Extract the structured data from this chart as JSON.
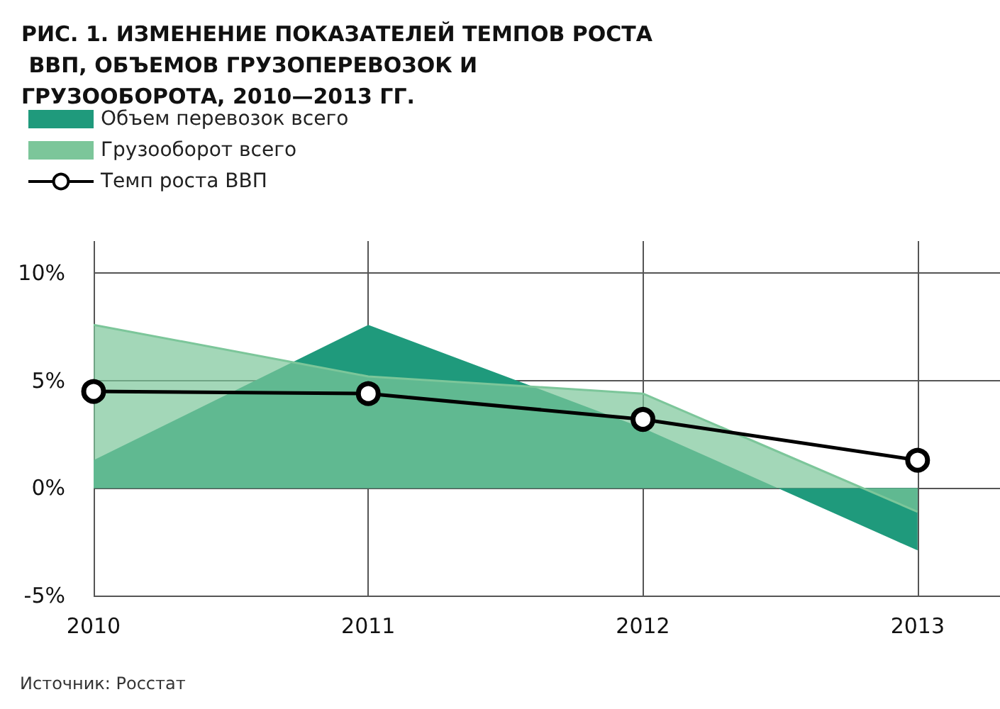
{
  "chart_data": {
    "type": "area",
    "title": "РИС. 1. ИЗМЕНЕНИЕ ПОКАЗАТЕЛЕЙ ТЕМПОВ РОСТА ВВП, ОБЪЕМОВ ГРУЗОПЕРЕВОЗОК И ГРУЗООБОРОТА, 2010—2013 ГГ.",
    "x": [
      2010,
      2011,
      2012,
      2013
    ],
    "series": [
      {
        "name": "Объем перевозок всего",
        "color": "#1f9a7c",
        "values": [
          1.3,
          7.6,
          2.8,
          -2.9
        ]
      },
      {
        "name": "Грузооборот всего",
        "color": "#7cc69a",
        "values": [
          7.6,
          5.2,
          4.4,
          -1.1
        ]
      },
      {
        "name": "Темп роста ВВП",
        "type": "line",
        "color": "#000000",
        "marker": "circle",
        "values": [
          4.5,
          4.4,
          3.2,
          1.3
        ]
      }
    ],
    "xlim": [
      2010,
      2013.3
    ],
    "xticks": [
      2010,
      2011,
      2012,
      2013
    ],
    "ylim": [
      -5,
      11.5
    ],
    "yticks": [
      {
        "value": -5,
        "label": "-5%"
      },
      {
        "value": 0,
        "label": "0%"
      },
      {
        "value": 5,
        "label": "5%"
      },
      {
        "value": 10,
        "label": "10%"
      }
    ],
    "grid": true,
    "legend": "top left",
    "annotations": [
      "Источник: Росстат"
    ]
  }
}
